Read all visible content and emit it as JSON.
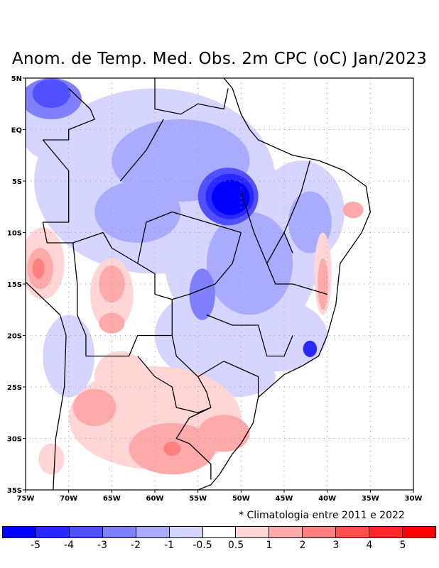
{
  "title": "Anom. de Temp. Med. Obs. 2m CPC (oC) Jan/2023",
  "footnote": "* Climatologia entre 2011 e 2022",
  "chart_data": {
    "type": "heatmap",
    "title": "Anom. de Temp. Med. Obs. 2m CPC (oC) Jan/2023",
    "lon_range": [
      -75,
      -30
    ],
    "lat_range": [
      -35,
      5
    ],
    "x_ticks": [
      "75W",
      "70W",
      "65W",
      "60W",
      "55W",
      "50W",
      "45W",
      "40W",
      "35W",
      "30W"
    ],
    "y_ticks": [
      "5N",
      "EQ",
      "5S",
      "10S",
      "15S",
      "20S",
      "25S",
      "30S",
      "35S"
    ],
    "grid": true,
    "colorbar": {
      "labels": [
        "-5",
        "-4",
        "-3",
        "-2",
        "-1",
        "-0.5",
        "0.5",
        "1",
        "2",
        "3",
        "4",
        "5"
      ],
      "colors": [
        "#0000ff",
        "#2828ff",
        "#5050ff",
        "#8080ff",
        "#aaaaff",
        "#d5d5ff",
        "#ffffff",
        "#ffd5d5",
        "#ffaaaa",
        "#ff8080",
        "#ff5050",
        "#ff2828",
        "#ff0000"
      ]
    },
    "anomaly_regions": [
      {
        "lon": -60,
        "lat": -5,
        "rlon": 14,
        "rlat": 9,
        "level": 5
      },
      {
        "lon": -72,
        "lat": 1,
        "rlon": 4,
        "rlat": 4,
        "level": 5
      },
      {
        "lon": -50,
        "lat": -12,
        "rlon": 9,
        "rlat": 9,
        "level": 5
      },
      {
        "lon": -43,
        "lat": -8,
        "rlon": 5,
        "rlat": 5,
        "level": 5
      },
      {
        "lon": -46,
        "lat": -20,
        "rlon": 6,
        "rlat": 3.5,
        "level": 5
      },
      {
        "lon": -55,
        "lat": -20,
        "rlon": 5,
        "rlat": 4,
        "level": 5
      },
      {
        "lon": -70,
        "lat": -22,
        "rlon": 3,
        "rlat": 4,
        "level": 5
      },
      {
        "lon": -51,
        "lat": -24,
        "rlon": 5,
        "rlat": 2,
        "level": 5
      },
      {
        "lon": -57,
        "lat": -3,
        "rlon": 8,
        "rlat": 4,
        "level": 4
      },
      {
        "lon": -62,
        "lat": -8,
        "rlon": 5,
        "rlat": 3,
        "level": 4
      },
      {
        "lon": -49,
        "lat": -13,
        "rlon": 5,
        "rlat": 5,
        "level": 4
      },
      {
        "lon": -42,
        "lat": -9,
        "rlon": 2.5,
        "rlat": 3,
        "level": 4
      },
      {
        "lon": -72,
        "lat": 3,
        "rlon": 3.5,
        "rlat": 2,
        "level": 3
      },
      {
        "lon": -54.5,
        "lat": -16,
        "rlon": 1.5,
        "rlat": 2.5,
        "level": 3
      },
      {
        "lon": -51.5,
        "lat": -6.5,
        "rlon": 3.5,
        "rlat": 2.8,
        "level": 2
      },
      {
        "lon": -72,
        "lat": 3.5,
        "rlon": 2.2,
        "rlat": 1.4,
        "level": 2
      },
      {
        "lon": -51.3,
        "lat": -6.5,
        "rlon": 2.8,
        "rlat": 2.2,
        "level": 1
      },
      {
        "lon": -51.2,
        "lat": -6.6,
        "rlon": 2.2,
        "rlat": 1.7,
        "level": 0
      },
      {
        "lon": -42,
        "lat": -21.3,
        "rlon": 0.8,
        "rlat": 0.8,
        "level": 1
      },
      {
        "lon": -60,
        "lat": -28,
        "rlon": 10,
        "rlat": 5,
        "level": 7
      },
      {
        "lon": -64,
        "lat": -24,
        "rlon": 3,
        "rlat": 2.5,
        "level": 7
      },
      {
        "lon": -73,
        "lat": -13,
        "rlon": 2.5,
        "rlat": 3.5,
        "level": 7
      },
      {
        "lon": -65,
        "lat": -16,
        "rlon": 2.5,
        "rlat": 3.5,
        "level": 7
      },
      {
        "lon": -40.5,
        "lat": -14,
        "rlon": 1,
        "rlat": 4,
        "level": 7
      },
      {
        "lon": -72,
        "lat": -32,
        "rlon": 1.5,
        "rlat": 1.5,
        "level": 7
      },
      {
        "lon": -58,
        "lat": -31,
        "rlon": 5,
        "rlat": 2.5,
        "level": 8
      },
      {
        "lon": -52,
        "lat": -29.5,
        "rlon": 3,
        "rlat": 1.8,
        "level": 8
      },
      {
        "lon": -67,
        "lat": -27,
        "rlon": 2.5,
        "rlat": 1.8,
        "level": 8
      },
      {
        "lon": -73.3,
        "lat": -13.5,
        "rlon": 1.5,
        "rlat": 2,
        "level": 8
      },
      {
        "lon": -65,
        "lat": -15,
        "rlon": 1.5,
        "rlat": 1.8,
        "level": 8
      },
      {
        "lon": -65,
        "lat": -18.8,
        "rlon": 1.5,
        "rlat": 1,
        "level": 8
      },
      {
        "lon": -40.5,
        "lat": -15,
        "rlon": 0.6,
        "rlat": 2.5,
        "level": 8
      },
      {
        "lon": -37,
        "lat": -7.8,
        "rlon": 1.2,
        "rlat": 0.8,
        "level": 8
      },
      {
        "lon": -73.5,
        "lat": -13.5,
        "rlon": 0.7,
        "rlat": 1,
        "level": 9
      },
      {
        "lon": -58,
        "lat": -31,
        "rlon": 1,
        "rlat": 0.7,
        "level": 9
      }
    ]
  }
}
